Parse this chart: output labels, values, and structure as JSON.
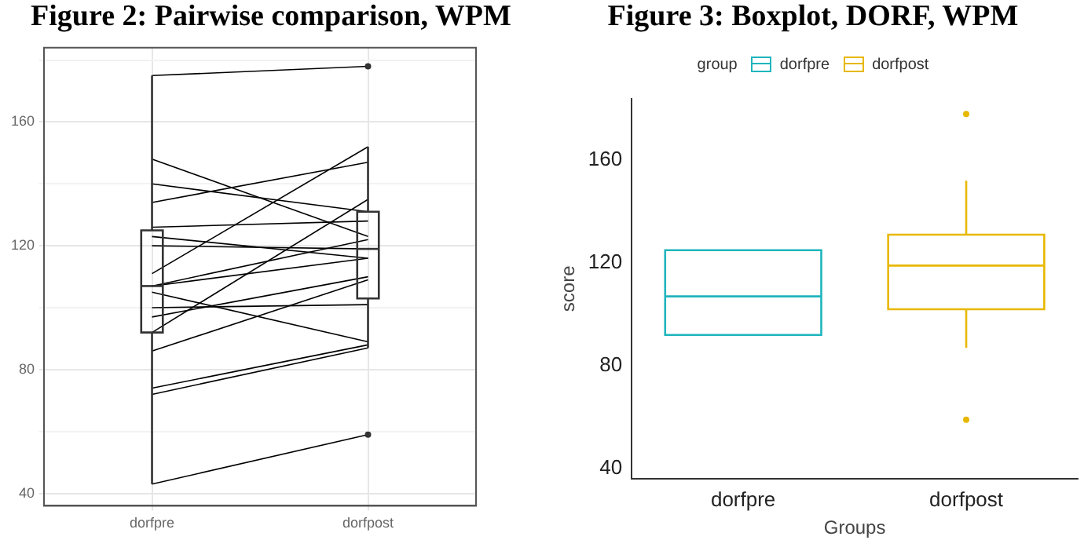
{
  "chart_data": [
    {
      "type": "box",
      "title": "Figure 2: Pairwise comparison, WPM",
      "categories": [
        "dorfpre",
        "dorfpost"
      ],
      "boxes": [
        {
          "low": 43,
          "q1": 92,
          "median": 107,
          "q3": 125,
          "high": 175
        },
        {
          "low": 87,
          "q1": 103,
          "median": 119,
          "q3": 131,
          "high": 152,
          "outliers": [
            178,
            59
          ]
        }
      ],
      "series": [
        {
          "type": "line",
          "color": "#000000",
          "values": [
            175,
            178
          ]
        },
        {
          "type": "line",
          "color": "#000000",
          "values": [
            43,
            59
          ]
        },
        {
          "type": "line",
          "color": "#000000",
          "values": [
            74,
            88
          ]
        },
        {
          "type": "line",
          "color": "#000000",
          "values": [
            72,
            87
          ]
        },
        {
          "type": "line",
          "color": "#000000",
          "values": [
            148,
            123
          ]
        },
        {
          "type": "line",
          "color": "#000000",
          "values": [
            140,
            131
          ]
        },
        {
          "type": "line",
          "color": "#000000",
          "values": [
            134,
            147
          ]
        },
        {
          "type": "line",
          "color": "#000000",
          "values": [
            126,
            128
          ]
        },
        {
          "type": "line",
          "color": "#000000",
          "values": [
            123,
            116
          ]
        },
        {
          "type": "line",
          "color": "#000000",
          "values": [
            120,
            119
          ]
        },
        {
          "type": "line",
          "color": "#000000",
          "values": [
            111,
            152
          ]
        },
        {
          "type": "line",
          "color": "#000000",
          "values": [
            107,
            122
          ]
        },
        {
          "type": "line",
          "color": "#000000",
          "values": [
            107,
            116
          ]
        },
        {
          "type": "line",
          "color": "#000000",
          "values": [
            105,
            89
          ]
        },
        {
          "type": "line",
          "color": "#000000",
          "values": [
            100,
            101
          ]
        },
        {
          "type": "line",
          "color": "#000000",
          "values": [
            97,
            110
          ]
        },
        {
          "type": "line",
          "color": "#000000",
          "values": [
            92,
            135
          ]
        },
        {
          "type": "line",
          "color": "#000000",
          "values": [
            86,
            109
          ]
        }
      ],
      "ylim": [
        36,
        184
      ],
      "yticks": [
        40,
        {
          "value": 60,
          "label": null
        },
        80,
        {
          "value": 100,
          "label": null
        },
        120,
        {
          "value": 140,
          "label": null
        },
        160,
        {
          "value": 180,
          "label": null
        }
      ],
      "grid": true
    },
    {
      "type": "box",
      "title": "Figure 3: Boxplot, DORF, WPM",
      "categories": [
        "dorfpre",
        "dorfpost"
      ],
      "xlabel": "Groups",
      "ylabel": "score",
      "legend_title": "group",
      "legend": "top",
      "series": [
        {
          "name": "dorfpre",
          "color": "#1fb5bd",
          "boxes": [
            {
              "low": 92,
              "q1": 92,
              "median": 107,
              "q3": 125,
              "high": 125
            },
            null
          ]
        },
        {
          "name": "dorfpost",
          "color": "#e7b800",
          "boxes": [
            null,
            {
              "low": 87,
              "q1": 102,
              "median": 119,
              "q3": 131,
              "high": 152,
              "outliers": [
                178,
                59
              ]
            }
          ]
        }
      ],
      "ylim": [
        36,
        184
      ],
      "yticks": [
        40,
        80,
        120,
        160
      ]
    }
  ]
}
